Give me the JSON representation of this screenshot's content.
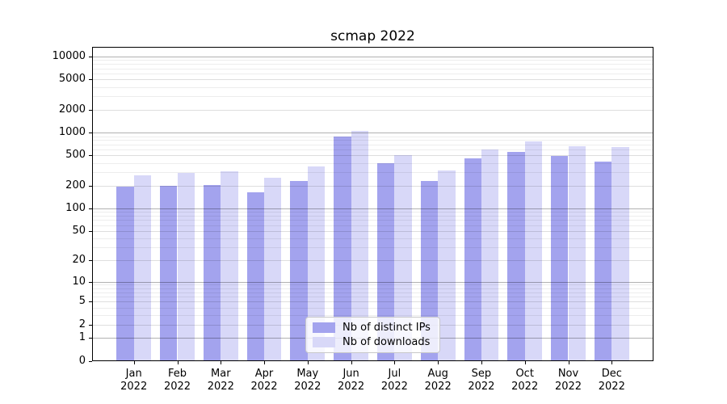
{
  "chart_data": {
    "type": "bar",
    "title": "scmap 2022",
    "categories": [
      "Jan",
      "Feb",
      "Mar",
      "Apr",
      "May",
      "Jun",
      "Jul",
      "Aug",
      "Sep",
      "Oct",
      "Nov",
      "Dec"
    ],
    "x_sublabel": "2022",
    "series": [
      {
        "name": "Nb of distinct IPs",
        "color": "#a3a3ee",
        "values": [
          196,
          199,
          205,
          164,
          228,
          890,
          398,
          230,
          457,
          560,
          489,
          413
        ]
      },
      {
        "name": "Nb of downloads",
        "color": "#d8d8f8",
        "values": [
          272,
          298,
          312,
          252,
          357,
          1068,
          509,
          316,
          601,
          769,
          668,
          641
        ]
      }
    ],
    "yticks": [
      0,
      1,
      2,
      5,
      10,
      20,
      50,
      100,
      200,
      500,
      1000,
      2000,
      5000,
      10000
    ],
    "ylim": [
      0,
      14000
    ],
    "xlabel": "",
    "ylabel": "",
    "scale": "log(1+x)",
    "grid": "horizontal major+minor",
    "legend_position": "lower center"
  }
}
